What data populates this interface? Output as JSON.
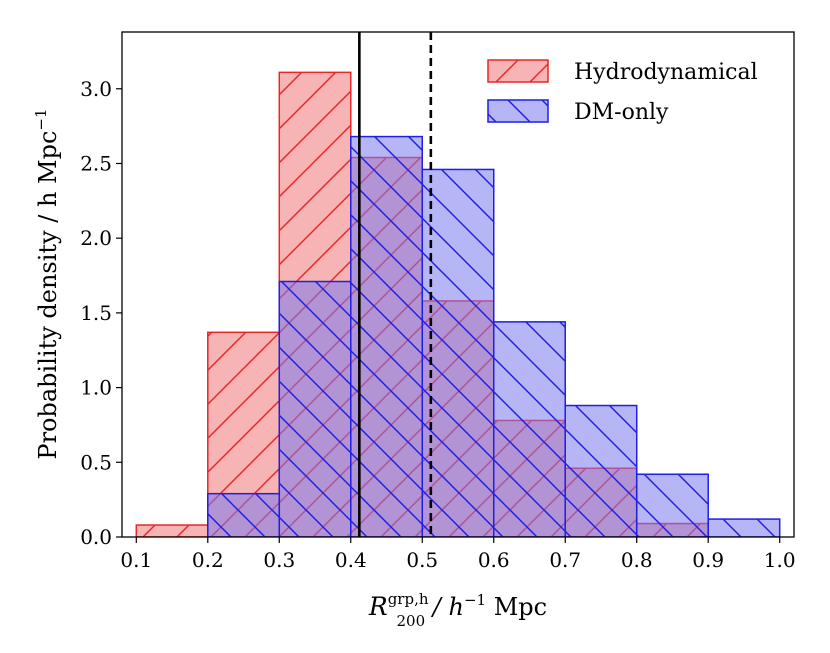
{
  "chart_data": {
    "type": "histogram",
    "bins": [
      0.1,
      0.2,
      0.3,
      0.4,
      0.5,
      0.6,
      0.7,
      0.8,
      0.9,
      1.0
    ],
    "series": [
      {
        "name": "Hydrodynamical",
        "values": [
          0.08,
          1.37,
          3.11,
          2.54,
          1.58,
          0.78,
          0.46,
          0.09,
          0.0
        ],
        "fill": "#f7b4b4",
        "edge": "#e8272c",
        "hatch": "forward-diagonal"
      },
      {
        "name": "DM-only",
        "values": [
          0.0,
          0.29,
          1.71,
          2.68,
          2.46,
          1.44,
          0.88,
          0.42,
          0.12
        ],
        "fill": "#7a7af0",
        "edge": "#1f1fe6",
        "hatch": "back-diagonal"
      }
    ],
    "vlines": [
      {
        "x": 0.412,
        "style": "solid"
      },
      {
        "x": 0.512,
        "style": "dashed"
      }
    ],
    "xlim": [
      0.08,
      1.02
    ],
    "ylim": [
      0.0,
      3.38
    ],
    "xticks": [
      "0.1",
      "0.2",
      "0.3",
      "0.4",
      "0.5",
      "0.6",
      "0.7",
      "0.8",
      "0.9",
      "1.0"
    ],
    "yticks": [
      "0.0",
      "0.5",
      "1.0",
      "1.5",
      "2.0",
      "2.5",
      "3.0"
    ],
    "xlabel": {
      "main": "R",
      "superscript": "grp,h",
      "subscript": "200",
      "rest": " / h",
      "exponent": "−1",
      "unit": " Mpc"
    },
    "ylabel": "Probability density / h Mpc",
    "ylabel_exponent": "−1",
    "legend_position": "top-right"
  }
}
